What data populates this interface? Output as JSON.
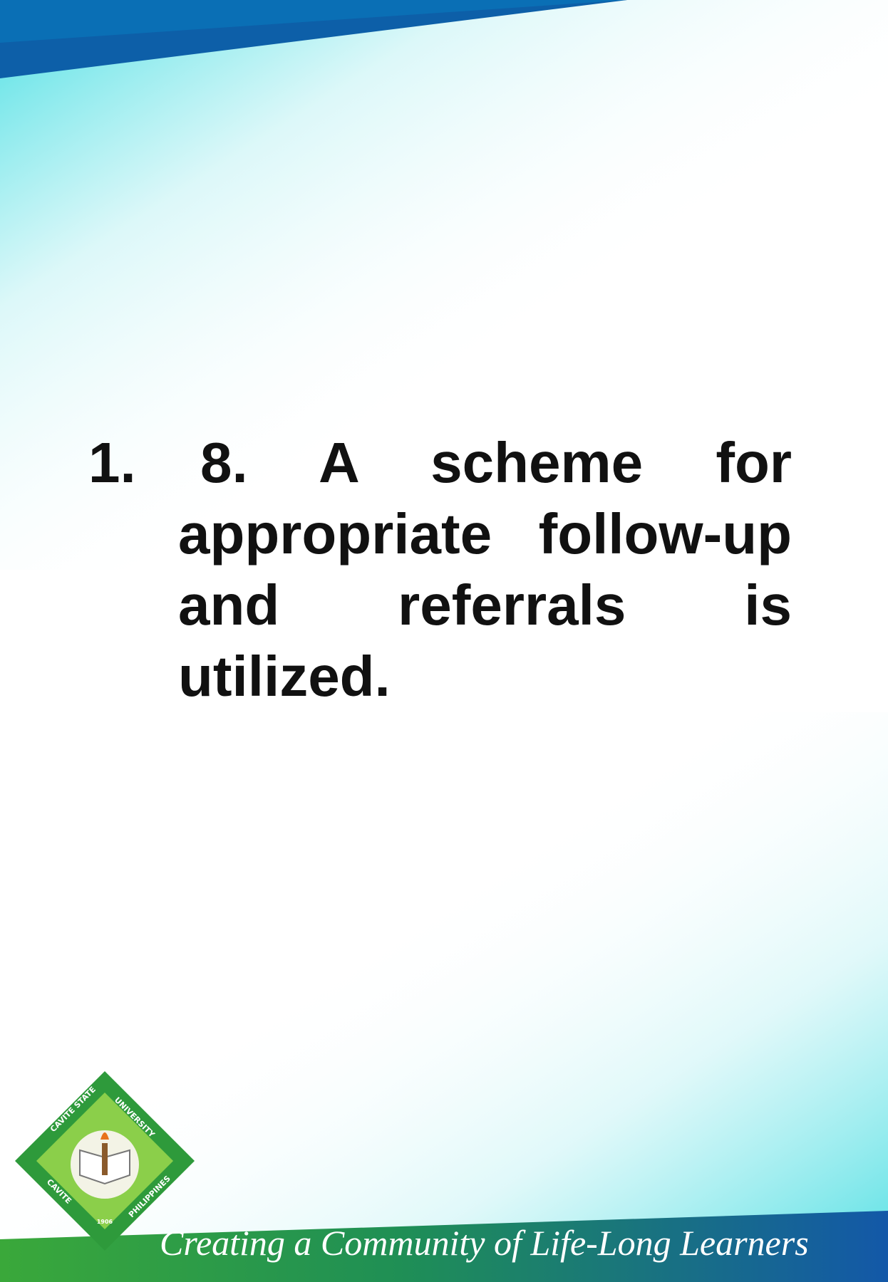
{
  "slide": {
    "list_number": "1.",
    "item_text": "8. A scheme for appropriate follow-up and referrals is utilized.",
    "logo": {
      "top_left": "CAVITE STATE",
      "top_right": "UNIVERSITY",
      "bottom_left": "CAVITE",
      "bottom_right": "PHILIPPINES",
      "year": "1906"
    },
    "tagline": "Creating a Community of Life-Long Learners"
  }
}
